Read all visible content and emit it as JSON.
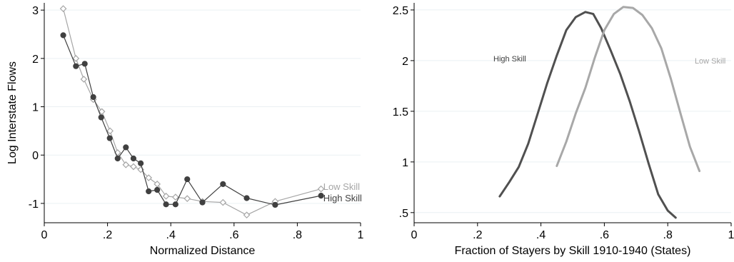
{
  "chart_data": [
    {
      "type": "line",
      "xlabel": "Normalized Distance",
      "ylabel": "Log Interstate Flows",
      "xlim": [
        0,
        1
      ],
      "ylim": [
        -1.4,
        3.15
      ],
      "xticks": [
        0,
        0.2,
        0.4,
        0.6,
        0.8,
        1
      ],
      "xtick_labels": [
        "0",
        ".2",
        ".4",
        ".6",
        ".8",
        "1"
      ],
      "yticks": [
        -1,
        0,
        1,
        2,
        3
      ],
      "ytick_labels": [
        "-1",
        "0",
        "1",
        "2",
        "3"
      ],
      "grid": true,
      "series": [
        {
          "name": "Low Skill",
          "color": "#a6a6a6",
          "marker": "diamond-open",
          "x": [
            0.06,
            0.1,
            0.125,
            0.155,
            0.182,
            0.208,
            0.232,
            0.258,
            0.282,
            0.305,
            0.33,
            0.357,
            0.385,
            0.415,
            0.452,
            0.5,
            0.565,
            0.64,
            0.73,
            0.875
          ],
          "y": [
            3.03,
            2.0,
            1.57,
            1.15,
            0.9,
            0.5,
            0.05,
            -0.2,
            -0.24,
            -0.3,
            -0.47,
            -0.6,
            -0.85,
            -0.87,
            -0.9,
            -0.96,
            -0.98,
            -1.24,
            -0.96,
            -0.7
          ]
        },
        {
          "name": "High Skill",
          "color": "#404040",
          "marker": "circle-filled",
          "x": [
            0.06,
            0.1,
            0.128,
            0.155,
            0.18,
            0.207,
            0.232,
            0.258,
            0.282,
            0.305,
            0.33,
            0.357,
            0.385,
            0.415,
            0.452,
            0.5,
            0.565,
            0.64,
            0.73,
            0.875
          ],
          "y": [
            2.48,
            1.84,
            1.89,
            1.2,
            0.78,
            0.35,
            -0.07,
            0.16,
            -0.07,
            -0.17,
            -0.75,
            -0.72,
            -1.02,
            -1.02,
            -0.5,
            -0.98,
            -0.6,
            -0.89,
            -1.03,
            -0.84
          ]
        }
      ],
      "annotations": [
        {
          "text": "Low Skill",
          "x": 0.882,
          "y": -0.66,
          "color": "#a6a6a6"
        },
        {
          "text": "High Skill",
          "x": 0.882,
          "y": -0.9,
          "color": "#404040"
        }
      ]
    },
    {
      "type": "line",
      "xlabel": "Fraction of Stayers by Skill 1910-1940 (States)",
      "ylabel": "",
      "xlim": [
        0,
        1
      ],
      "ylim": [
        0.4,
        2.57
      ],
      "xticks": [
        0,
        0.2,
        0.4,
        0.6,
        0.8,
        1
      ],
      "xtick_labels": [
        "0",
        ".2",
        ".4",
        ".6",
        ".8",
        "1"
      ],
      "yticks": [
        0.5,
        1,
        1.5,
        2,
        2.5
      ],
      "ytick_labels": [
        ".5",
        "1",
        "1.5",
        "2",
        "2.5"
      ],
      "grid": true,
      "series": [
        {
          "name": "High Skill",
          "color": "#505050",
          "x": [
            0.27,
            0.3,
            0.33,
            0.36,
            0.39,
            0.42,
            0.45,
            0.48,
            0.51,
            0.54,
            0.565,
            0.59,
            0.62,
            0.65,
            0.68,
            0.71,
            0.74,
            0.77,
            0.8,
            0.825
          ],
          "y": [
            0.66,
            0.8,
            0.95,
            1.18,
            1.48,
            1.78,
            2.05,
            2.3,
            2.43,
            2.48,
            2.46,
            2.32,
            2.1,
            1.87,
            1.6,
            1.3,
            0.98,
            0.68,
            0.52,
            0.45
          ]
        },
        {
          "name": "Low Skill",
          "color": "#a8a8a8",
          "x": [
            0.45,
            0.48,
            0.51,
            0.54,
            0.57,
            0.6,
            0.63,
            0.66,
            0.69,
            0.72,
            0.75,
            0.78,
            0.81,
            0.84,
            0.87,
            0.9
          ],
          "y": [
            0.96,
            1.2,
            1.48,
            1.73,
            2.03,
            2.3,
            2.46,
            2.53,
            2.52,
            2.45,
            2.32,
            2.12,
            1.82,
            1.48,
            1.15,
            0.91
          ]
        }
      ],
      "annotations": [
        {
          "text": "High Skill",
          "x": 0.25,
          "y": 2.02,
          "color": "#404040"
        },
        {
          "text": "Low Skill",
          "x": 0.885,
          "y": 2.0,
          "color": "#a6a6a6"
        }
      ]
    }
  ]
}
